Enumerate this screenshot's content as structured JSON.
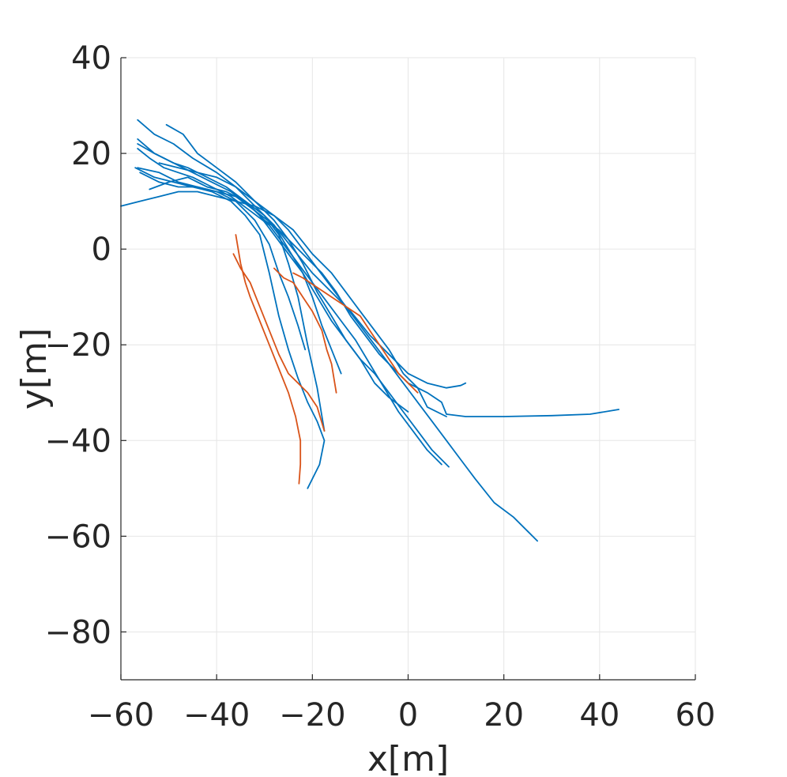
{
  "chart_data": {
    "type": "line",
    "xlabel": "x[m]",
    "ylabel": "y[m]",
    "xlim": [
      -60,
      60
    ],
    "ylim": [
      -90,
      40
    ],
    "xticks": [
      -60,
      -40,
      -20,
      0,
      20,
      40,
      60
    ],
    "yticks": [
      40,
      20,
      0,
      -20,
      -40,
      -60,
      -80
    ],
    "xtick_labels": [
      "−60",
      "−40",
      "−20",
      "0",
      "20",
      "40",
      "60"
    ],
    "ytick_labels": [
      "40",
      "20",
      "0",
      "−20",
      "−40",
      "−60",
      "−80"
    ],
    "grid": true,
    "colors": {
      "blue": "#0072BD",
      "orange": "#D95319"
    },
    "series": [
      {
        "color": "blue",
        "x": [
          -56.5,
          -53,
          -49,
          -45,
          -40,
          -36,
          -32,
          -28,
          -24,
          -20,
          -16,
          -12,
          -8,
          -4,
          0,
          4,
          8,
          11,
          12
        ],
        "y": [
          27,
          24,
          22,
          19,
          16,
          13,
          9,
          5,
          0,
          -5,
          -9,
          -13,
          -18,
          -22,
          -26,
          -28,
          -29,
          -28.5,
          -28
        ]
      },
      {
        "color": "blue",
        "x": [
          -50.5,
          -47,
          -44,
          -40,
          -36,
          -32,
          -28,
          -24,
          -20,
          -16,
          -13,
          -10,
          -7,
          -4,
          -1,
          2,
          4,
          8
        ],
        "y": [
          26,
          24,
          20,
          17,
          14,
          10,
          7,
          4,
          -1,
          -5,
          -9,
          -13,
          -17,
          -21,
          -26,
          -29,
          -33,
          -35
        ]
      },
      {
        "color": "blue",
        "x": [
          -56.5,
          -53,
          -49,
          -45,
          -41,
          -37,
          -33,
          -30,
          -27,
          -24,
          -21,
          -18,
          -15,
          -12,
          -9,
          -6,
          -3,
          0,
          4,
          7,
          8,
          12,
          20,
          30,
          38,
          44
        ],
        "y": [
          22,
          20,
          18,
          16,
          14,
          12,
          9,
          6,
          4,
          1,
          -2,
          -5,
          -9,
          -14,
          -18,
          -22,
          -25,
          -28,
          -30,
          -32,
          -34.5,
          -35,
          -35,
          -34.8,
          -34.5,
          -33.5
        ]
      },
      {
        "color": "blue",
        "x": [
          -60,
          -56,
          -52,
          -48,
          -44,
          -40,
          -36,
          -32,
          -28,
          -25,
          -22,
          -19,
          -16,
          -13,
          -10,
          -7,
          -4,
          -1,
          2,
          5,
          8,
          11,
          14,
          18,
          22,
          25,
          27
        ],
        "y": [
          9,
          10,
          11,
          12,
          12,
          11,
          10,
          9,
          7,
          4,
          0,
          -4,
          -8,
          -12,
          -16,
          -20,
          -24,
          -28,
          -32,
          -36,
          -40,
          -44,
          -48,
          -53,
          -56,
          -59,
          -61
        ]
      },
      {
        "color": "blue",
        "x": [
          -56.5,
          -54,
          -51,
          -48,
          -45,
          -41,
          -37,
          -33,
          -29,
          -26,
          -23,
          -20,
          -17,
          -14,
          -11,
          -8,
          -5,
          -2,
          1,
          4,
          7
        ],
        "y": [
          21,
          19,
          17,
          16,
          15,
          13,
          11,
          8,
          5,
          1,
          -3,
          -7,
          -11,
          -15,
          -19,
          -24,
          -29,
          -34,
          -38,
          -42,
          -45
        ]
      },
      {
        "color": "blue",
        "x": [
          -56.5,
          -52,
          -48,
          -44,
          -40,
          -36,
          -32,
          -28,
          -25,
          -22,
          -19,
          -16,
          -13,
          -10,
          -7,
          -4,
          -1,
          2,
          5,
          8.5
        ],
        "y": [
          17,
          16,
          14,
          13,
          12,
          11,
          8,
          5,
          0,
          -5,
          -10,
          -15,
          -19,
          -23,
          -26,
          -30,
          -34,
          -38,
          -42,
          -45.5
        ]
      },
      {
        "color": "blue",
        "x": [
          -56.5,
          -53,
          -49,
          -46,
          -42,
          -38,
          -34,
          -31,
          -28,
          -25,
          -22,
          -20,
          -18,
          -16,
          -14
        ],
        "y": [
          23,
          20,
          18,
          17,
          15,
          13,
          10,
          7,
          3,
          -1,
          -5,
          -10,
          -16,
          -21,
          -26
        ]
      },
      {
        "color": "blue",
        "x": [
          -56,
          -52,
          -48,
          -44,
          -40,
          -36,
          -32,
          -29,
          -27,
          -25,
          -23,
          -21.5
        ],
        "y": [
          16,
          14,
          13,
          13,
          12,
          10,
          6,
          1,
          -5,
          -10,
          -16,
          -21
        ]
      },
      {
        "color": "blue",
        "x": [
          -57,
          -53,
          -49,
          -45,
          -41,
          -37,
          -34,
          -31,
          -29,
          -27,
          -25,
          -23,
          -21,
          -19,
          -17.5,
          -18.5,
          -21
        ],
        "y": [
          17,
          15,
          14,
          13,
          12,
          10,
          7,
          3,
          -5,
          -14,
          -21,
          -27,
          -32,
          -36,
          -40,
          -45,
          -50
        ]
      },
      {
        "color": "blue",
        "x": [
          -54,
          -50,
          -46,
          -42,
          -38,
          -34,
          -30,
          -27,
          -25,
          -23,
          -21,
          -19,
          -17.5
        ],
        "y": [
          12.5,
          14,
          15,
          13,
          12,
          10,
          7,
          3,
          -3,
          -10,
          -20,
          -29,
          -38
        ]
      },
      {
        "color": "blue",
        "x": [
          -52,
          -48,
          -44,
          -40,
          -36,
          -32,
          -28,
          -25,
          -22,
          -19,
          -16,
          -13,
          -10,
          -7,
          -4,
          0
        ],
        "y": [
          18,
          17,
          16,
          15,
          13,
          10,
          6,
          2,
          -3,
          -9,
          -14,
          -19,
          -23,
          -28,
          -31,
          -34
        ]
      },
      {
        "color": "orange",
        "x": [
          -36,
          -35,
          -34,
          -33,
          -31,
          -29,
          -27,
          -25,
          -23.5,
          -22.5,
          -22.5,
          -22.8
        ],
        "y": [
          3,
          -3,
          -7,
          -10,
          -15,
          -20,
          -25,
          -30,
          -35,
          -40,
          -45,
          -49
        ]
      },
      {
        "color": "orange",
        "x": [
          -36.5,
          -35,
          -33,
          -31,
          -29,
          -27,
          -25,
          -23,
          -21,
          -19,
          -17.5
        ],
        "y": [
          -1,
          -4,
          -7,
          -12,
          -17,
          -22,
          -26,
          -28,
          -30,
          -33,
          -38
        ]
      },
      {
        "color": "orange",
        "x": [
          -28,
          -26,
          -24,
          -22,
          -20,
          -18,
          -17,
          -16,
          -15.5,
          -15
        ],
        "y": [
          -4,
          -6,
          -7,
          -10,
          -13,
          -17,
          -21,
          -24,
          -27,
          -30
        ]
      },
      {
        "color": "orange",
        "x": [
          -24,
          -22,
          -19,
          -16,
          -13,
          -10,
          -8,
          -6,
          -4,
          -2,
          0,
          2
        ],
        "y": [
          -5,
          -6,
          -8,
          -10,
          -12,
          -14,
          -17,
          -20,
          -23,
          -26,
          -28,
          -30
        ]
      }
    ]
  }
}
